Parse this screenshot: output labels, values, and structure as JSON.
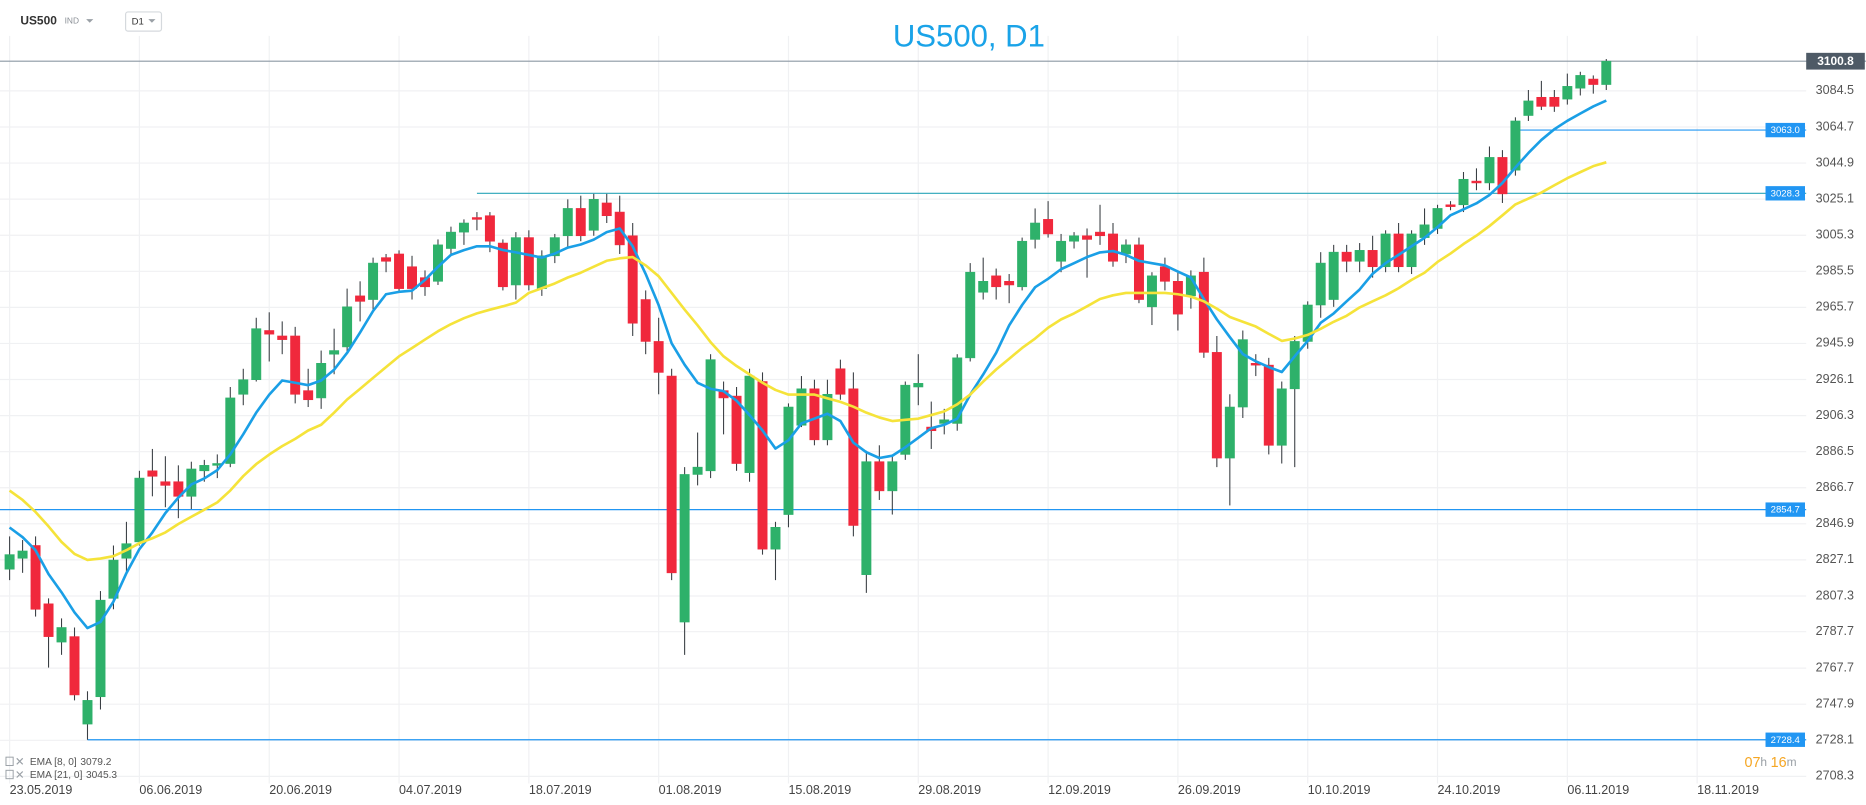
{
  "header": {
    "symbol": "US500",
    "market": "IND",
    "interval": "D1"
  },
  "timer": {
    "hours": "07",
    "h": "h",
    "minutes": "16",
    "m": "m"
  },
  "chart_data": {
    "type": "candlestick",
    "title": "US500, D1",
    "up_color": "#2eb16a",
    "down_color": "#f0283c",
    "open": [
      2822,
      2828,
      2835,
      2803,
      2782,
      2785,
      2737,
      2752,
      2806,
      2828,
      2837,
      2876,
      2870,
      2870,
      2862,
      2876,
      2879,
      2880,
      2918,
      2926,
      2953,
      2950,
      2950,
      2920,
      2916,
      2940,
      2944,
      2972,
      2970,
      2993,
      2995,
      2988,
      2982,
      2980,
      2998,
      3007,
      3015,
      3016,
      3001,
      2978,
      3004,
      2976,
      2994,
      3005,
      3020,
      3008,
      3023,
      3018,
      3005,
      2970,
      2947,
      2928,
      2793,
      2874,
      2876,
      2920,
      2917,
      2875,
      2925,
      2833,
      2852,
      2901,
      2921,
      2893,
      2932,
      2921,
      2819,
      2881,
      2865,
      2885,
      2922,
      2900,
      2902,
      2902,
      2938,
      2974,
      2983,
      2980,
      2977,
      3003,
      3014,
      2991,
      3002,
      3005,
      3007,
      3006,
      2995,
      3000,
      2966,
      2988,
      2980,
      2972,
      2985,
      2941,
      2883,
      2911,
      2935,
      2934,
      2890,
      2921,
      2947,
      2967,
      2970,
      2996,
      2991,
      2997,
      2988,
      3006,
      2988,
      3004,
      3009,
      3022,
      3022,
      3035,
      3034,
      3048,
      3041,
      3071,
      3081,
      3081,
      3080,
      3086,
      3091,
      3088
    ],
    "high": [
      2840,
      2838,
      2840,
      2806,
      2795,
      2790,
      2755,
      2810,
      2835,
      2848,
      2876,
      2888,
      2884,
      2879,
      2881,
      2882,
      2885,
      2922,
      2932,
      2960,
      2963,
      2958,
      2955,
      2932,
      2942,
      2954,
      2976,
      2980,
      2993,
      2995,
      2997,
      2994,
      2986,
      3003,
      3010,
      3014,
      3018,
      3018,
      3003,
      3007,
      3008,
      2997,
      3006,
      3025,
      3027,
      3028,
      3028,
      3027,
      3012,
      2975,
      2960,
      2932,
      2878,
      2897,
      2940,
      2925,
      2922,
      2932,
      2930,
      2848,
      2913,
      2928,
      2926,
      2926,
      2937,
      2930,
      2887,
      2890,
      2884,
      2925,
      2940,
      2914,
      2910,
      2940,
      2990,
      2993,
      2987,
      2984,
      3004,
      3020,
      3024,
      3006,
      3007,
      3009,
      3022,
      3012,
      3003,
      3004,
      2985,
      2993,
      2986,
      2986,
      2993,
      2950,
      2918,
      2953,
      2940,
      2938,
      2925,
      2950,
      2969,
      2996,
      3000,
      3000,
      3001,
      3005,
      3008,
      3012,
      3008,
      3020,
      3022,
      3024,
      3040,
      3042,
      3054,
      3052,
      3070,
      3085,
      3090,
      3085,
      3094,
      3095,
      3093,
      3102
    ],
    "low": [
      2816,
      2820,
      2796,
      2768,
      2775,
      2750,
      2728.4,
      2745,
      2800,
      2820,
      2835,
      2862,
      2856,
      2850,
      2855,
      2870,
      2872,
      2878,
      2912,
      2925,
      2936,
      2940,
      2913,
      2911,
      2910,
      2929,
      2940,
      2958,
      2964,
      2985,
      2974,
      2970,
      2972,
      2978,
      2994,
      3000,
      3008,
      2996,
      2975,
      2970,
      2975,
      2972,
      2990,
      2998,
      3002,
      3005,
      3012,
      2995,
      2950,
      2940,
      2918,
      2816,
      2775,
      2868,
      2872,
      2896,
      2876,
      2870,
      2830,
      2816,
      2845,
      2900,
      2890,
      2890,
      2915,
      2840,
      2809,
      2860,
      2852,
      2882,
      2912,
      2888,
      2896,
      2898,
      2936,
      2970,
      2970,
      2968,
      2975,
      2998,
      3004,
      2985,
      2998,
      2982,
      3000,
      2988,
      2990,
      2968,
      2956,
      2975,
      2953,
      2965,
      2938,
      2878,
      2857,
      2905,
      2928,
      2885,
      2880,
      2878,
      2943,
      2960,
      2966,
      2985,
      2985,
      2982,
      2985,
      2985,
      2984,
      3000,
      3006,
      3019,
      3018,
      3030,
      3030,
      3023,
      3038,
      3068,
      3074,
      3073,
      3077,
      3082,
      3083,
      3085
    ],
    "close": [
      2830,
      2832,
      2800,
      2785,
      2790,
      2753,
      2750,
      2805,
      2827,
      2836,
      2872,
      2873,
      2868,
      2862,
      2877,
      2879,
      2880,
      2916,
      2926,
      2954,
      2951,
      2948,
      2918,
      2915,
      2935,
      2942,
      2966,
      2969,
      2990,
      2991,
      2976,
      2976,
      2977,
      3000,
      3007,
      3012,
      3014,
      3002,
      2977,
      3004,
      2978,
      2994,
      3004,
      3020,
      3005,
      3025,
      3016,
      3000,
      2957,
      2947,
      2930,
      2820,
      2874,
      2878,
      2937,
      2916,
      2880,
      2928,
      2833,
      2845,
      2911,
      2921,
      2893,
      2918,
      2918,
      2846,
      2881,
      2865,
      2881,
      2923,
      2924,
      2898,
      2904,
      2938,
      2985,
      2980,
      2977,
      2978,
      3002,
      3012,
      3006,
      3002,
      3005,
      3003,
      3005,
      2991,
      3000,
      2970,
      2983,
      2980,
      2962,
      2983,
      2941,
      2883,
      2911,
      2948,
      2934,
      2890,
      2921,
      2947,
      2967,
      2990,
      2996,
      2991,
      2997,
      2988,
      3006,
      2988,
      3006,
      3011,
      3020,
      3021,
      3036,
      3034,
      3048,
      3028,
      3068,
      3079,
      3076,
      3076,
      3087,
      3093,
      3088,
      3100.8
    ],
    "overlays": [
      {
        "name": "EMA [8, 0]",
        "color": "#1a9fe6",
        "values": [
          2844.9,
          2839.6,
          2832.4,
          2819.3,
          2809.4,
          2798.3,
          2789.7,
          2793.0,
          2804.2,
          2819.9,
          2833.1,
          2842.2,
          2852.8,
          2861.3,
          2868.5,
          2871.8,
          2876.4,
          2885.0,
          2896.1,
          2907.9,
          2917.8,
          2925.6,
          2924.3,
          2923.0,
          2925.6,
          2931.5,
          2940.7,
          2951.9,
          2963.7,
          2972.9,
          2974.2,
          2974.9,
          2980.8,
          2988.0,
          2994.5,
          2997.1,
          2999.2,
          2999.2,
          2997.2,
          2995.9,
          2994.5,
          2993.0,
          2995.2,
          2998.5,
          3000.2,
          3002.9,
          3007.0,
          3009.0,
          2999.2,
          2984.0,
          2967.0,
          2946.0,
          2934.2,
          2924.3,
          2921.0,
          2919.7,
          2914.5,
          2906.6,
          2898.1,
          2888.2,
          2892.8,
          2902.0,
          2904.6,
          2907.3,
          2903.3,
          2891.5,
          2886.2,
          2883.0,
          2884.3,
          2888.9,
          2894.1,
          2899.4,
          2901.3,
          2904.6,
          2917.8,
          2928.9,
          2940.7,
          2955.8,
          2967.0,
          2976.8,
          2981.4,
          2986.7,
          2990.0,
          2993.3,
          2995.9,
          2996.6,
          2994.5,
          2991.2,
          2990.0,
          2988.7,
          2985.4,
          2982.1,
          2970.3,
          2959.1,
          2949.3,
          2940.1,
          2936.1,
          2932.9,
          2930.2,
          2938.8,
          2947.3,
          2957.2,
          2962.4,
          2969.0,
          2975.5,
          2984.1,
          2990.0,
          2994.5,
          2999.2,
          3003.8,
          3009.7,
          3016.2,
          3019.5,
          3022.8,
          3027.4,
          3034.0,
          3042.5,
          3050.4,
          3057.6,
          3063.5,
          3068.1,
          3072.1,
          3076.0,
          3079.2
        ]
      },
      {
        "name": "EMA [21, 0]",
        "color": "#f5e33a",
        "values": [
          2865.2,
          2860.0,
          2853.4,
          2845.5,
          2837.0,
          2830.4,
          2827.1,
          2827.8,
          2829.1,
          2832.4,
          2836.3,
          2839.0,
          2842.2,
          2846.8,
          2850.8,
          2854.7,
          2858.7,
          2865.2,
          2873.1,
          2879.7,
          2884.9,
          2889.5,
          2893.5,
          2898.1,
          2901.3,
          2907.9,
          2915.1,
          2921.0,
          2927.0,
          2932.9,
          2938.8,
          2943.4,
          2948.0,
          2952.6,
          2956.5,
          2959.8,
          2962.4,
          2964.4,
          2966.3,
          2968.3,
          2973.6,
          2976.2,
          2978.8,
          2982.1,
          2984.7,
          2988.0,
          2991.3,
          2992.6,
          2993.3,
          2988.7,
          2982.8,
          2973.6,
          2964.4,
          2955.8,
          2946.6,
          2938.8,
          2933.5,
          2928.9,
          2924.3,
          2920.4,
          2917.8,
          2917.8,
          2917.8,
          2915.8,
          2913.8,
          2911.2,
          2907.9,
          2905.3,
          2903.3,
          2904.0,
          2904.6,
          2906.6,
          2908.6,
          2912.5,
          2917.8,
          2925.0,
          2931.6,
          2937.5,
          2943.4,
          2948.6,
          2954.5,
          2959.1,
          2962.4,
          2966.3,
          2970.3,
          2972.3,
          2973.6,
          2973.6,
          2973.6,
          2973.6,
          2972.9,
          2971.6,
          2969.0,
          2965.0,
          2960.4,
          2957.8,
          2955.2,
          2951.2,
          2947.3,
          2948.6,
          2950.6,
          2953.9,
          2957.8,
          2961.1,
          2965.7,
          2969.0,
          2972.3,
          2976.2,
          2980.8,
          2984.7,
          2990.6,
          2995.2,
          3000.5,
          3005.1,
          3010.3,
          3016.2,
          3022.2,
          3025.4,
          3028.7,
          3032.7,
          3036.6,
          3039.9,
          3043.2,
          3045.3
        ]
      }
    ],
    "levels": [
      {
        "value": 3100.8,
        "label": "3100.8",
        "color": "#8c98a4",
        "box_color": "#4e5a66"
      },
      {
        "value": 3063.0,
        "label": "3063.0",
        "color": "#2196f3",
        "box_color": "#2196f3"
      },
      {
        "value": 3028.3,
        "label": "3028.3",
        "color": "#2aa5b8",
        "box_color": "#2196f3"
      },
      {
        "value": 2854.7,
        "label": "2854.7",
        "color": "#2196f3",
        "box_color": "#2196f3"
      },
      {
        "value": 2728.4,
        "label": "2728.4",
        "color": "#2196f3",
        "box_color": "#2196f3"
      }
    ],
    "ylim": [
      2704.4,
      3114.7
    ],
    "yticks": [
      3084.5,
      3064.7,
      3044.9,
      3025.1,
      3005.3,
      2985.5,
      2965.7,
      2945.9,
      2926.1,
      2906.3,
      2886.5,
      2866.7,
      2846.9,
      2827.1,
      2807.3,
      2787.7,
      2767.7,
      2747.9,
      2728.1,
      2708.3
    ],
    "xlim": [
      -0.74,
      138.4
    ],
    "xticks": [
      {
        "value": 0,
        "label": "23.05.2019"
      },
      {
        "value": 10,
        "label": "06.06.2019"
      },
      {
        "value": 20,
        "label": "20.06.2019"
      },
      {
        "value": 30,
        "label": "04.07.2019"
      },
      {
        "value": 40,
        "label": "18.07.2019"
      },
      {
        "value": 50,
        "label": "01.08.2019"
      },
      {
        "value": 60,
        "label": "15.08.2019"
      },
      {
        "value": 70,
        "label": "29.08.2019"
      },
      {
        "value": 80,
        "label": "12.09.2019"
      },
      {
        "value": 90,
        "label": "26.09.2019"
      },
      {
        "value": 100,
        "label": "10.10.2019"
      },
      {
        "value": 110,
        "label": "24.10.2019"
      },
      {
        "value": 120,
        "label": "06.11.2019"
      },
      {
        "value": 130,
        "label": "18.11.2019"
      }
    ],
    "grid": true
  }
}
